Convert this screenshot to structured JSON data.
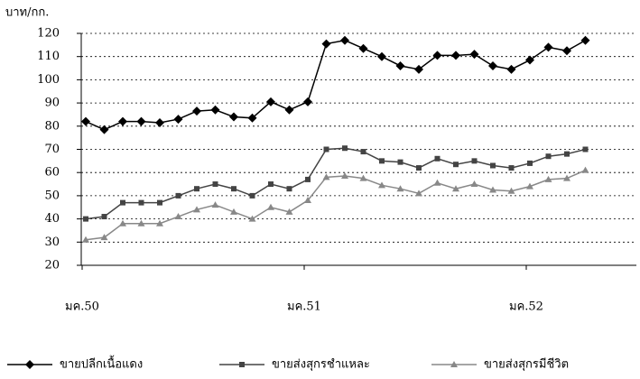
{
  "chart_data": {
    "type": "line",
    "y_unit_label": "บาท/กก.",
    "categories": [
      "มค.50",
      null,
      null,
      null,
      null,
      null,
      null,
      null,
      null,
      null,
      null,
      null,
      "มค.51",
      null,
      null,
      null,
      null,
      null,
      null,
      null,
      null,
      null,
      null,
      null,
      "มค.52",
      null,
      null,
      null
    ],
    "series": [
      {
        "name": "ขายปลีกเนื้อแดง",
        "color": "#000000",
        "marker": "diamond",
        "values": [
          82,
          78.5,
          82,
          82,
          81.5,
          83,
          86.5,
          87,
          84,
          83.5,
          90.5,
          87,
          90.5,
          115.5,
          117,
          113.5,
          110,
          106,
          104.5,
          110.5,
          110.5,
          111,
          106,
          104.5,
          108.5,
          114,
          112.5,
          117
        ]
      },
      {
        "name": "ขายส่งสุกรชำแหละ",
        "color": "#444444",
        "marker": "square",
        "values": [
          40,
          41,
          47,
          47,
          47,
          50,
          53,
          55,
          53,
          50,
          55,
          53,
          57,
          70,
          70.5,
          69,
          65,
          64.5,
          62,
          66,
          63.5,
          65,
          63,
          62,
          64,
          67,
          68,
          70
        ]
      },
      {
        "name": "ขายส่งสุกรมีชีวิต",
        "color": "#888888",
        "marker": "triangle",
        "values": [
          31,
          32,
          38,
          38,
          38,
          41,
          44,
          46,
          43,
          40,
          45,
          43,
          48,
          58,
          58.5,
          57.5,
          54.5,
          53,
          51,
          55.5,
          53,
          55,
          52.5,
          52,
          54,
          57,
          57.5,
          61
        ]
      }
    ],
    "ylim": [
      20,
      120
    ],
    "yticks": [
      20,
      30,
      40,
      50,
      60,
      70,
      80,
      90,
      100,
      110,
      120
    ],
    "grid": true
  }
}
